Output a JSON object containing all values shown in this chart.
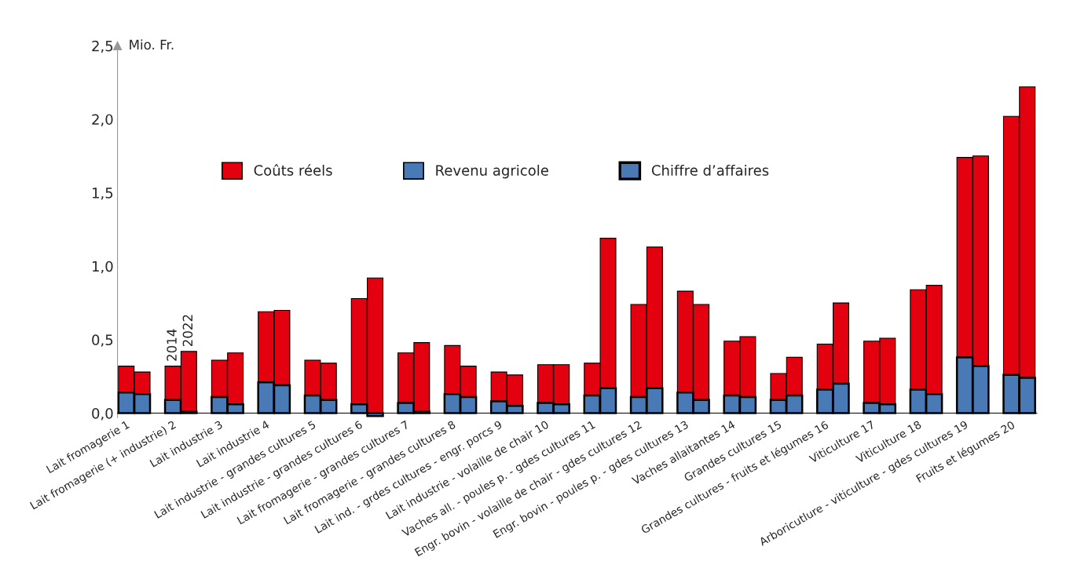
{
  "chart_data": {
    "type": "bar",
    "stacked": true,
    "ylabel": "Mio. Fr.",
    "categories": [
      "Lait fromagerie 1",
      null,
      "Lait fromagerie (+ industrie) 2",
      null,
      "Lait industrie 3",
      null,
      "Lait industrie 4",
      null,
      "Lait industrie - grandes cultures 5",
      null,
      "Lait industrie - grandes cultures 6",
      null,
      "Lait fromagerie - grandes cultures 7",
      null,
      "Lait fromagerie - grandes cultures 8",
      null,
      "Lait ind. - grdes cultures - engr. porcs 9",
      null,
      "Lait industrie - volaille de chair 10",
      null,
      "Vaches all. - poules p. - gdes cultures 11",
      null,
      "Engr. bovin - volaille de chair - gdes cultures 12",
      null,
      "Engr. bovin - poules p. - gdes cultures 13",
      null,
      "Vaches allaitantes 14",
      null,
      "Grandes cultures 15",
      null,
      "Grandes cultures - fruits et légumes 16",
      null,
      "Viticulture 17",
      null,
      "Viticulture 18",
      null,
      "Arboricutlure - viticulture - gdes cultures 19",
      null,
      "Fruits et légumes 20",
      null
    ],
    "series": [
      {
        "name": "Revenu agricole",
        "color": "#4a7ab5",
        "values": [
          0.14,
          0.13,
          0.09,
          0.01,
          0.11,
          0.06,
          0.21,
          0.19,
          0.12,
          0.09,
          0.06,
          -0.02,
          0.07,
          0.01,
          0.13,
          0.11,
          0.08,
          0.05,
          0.07,
          0.06,
          0.12,
          0.17,
          0.11,
          0.17,
          0.14,
          0.09,
          0.12,
          0.11,
          0.09,
          0.12,
          0.16,
          0.2,
          0.07,
          0.06,
          0.16,
          0.13,
          0.38,
          0.32,
          0.26,
          0.24
        ]
      },
      {
        "name": "Coûts réels",
        "color": "#e3000f",
        "values": [
          0.18,
          0.15,
          0.23,
          0.41,
          0.25,
          0.35,
          0.48,
          0.51,
          0.24,
          0.25,
          0.72,
          0.92,
          0.34,
          0.47,
          0.33,
          0.21,
          0.2,
          0.21,
          0.26,
          0.27,
          0.22,
          1.02,
          0.63,
          0.96,
          0.69,
          0.65,
          0.37,
          0.41,
          0.18,
          0.26,
          0.31,
          0.55,
          0.42,
          0.45,
          0.68,
          0.74,
          1.36,
          1.43,
          1.76,
          1.98
        ]
      }
    ],
    "ylim": [
      -0.03,
      2.5
    ],
    "yticks": [
      {
        "value": 0,
        "label": "0,0"
      },
      {
        "value": 0.5,
        "label": "0,5"
      },
      {
        "value": 1,
        "label": "1,0"
      },
      {
        "value": 1.5,
        "label": "1,5"
      },
      {
        "value": 2,
        "label": "2,0"
      },
      {
        "value": 2.5,
        "label": "2,5"
      }
    ],
    "annotations": [
      "2014",
      "2022",
      "Chiffre d’affaires"
    ],
    "legend": "top left",
    "grid": false
  }
}
